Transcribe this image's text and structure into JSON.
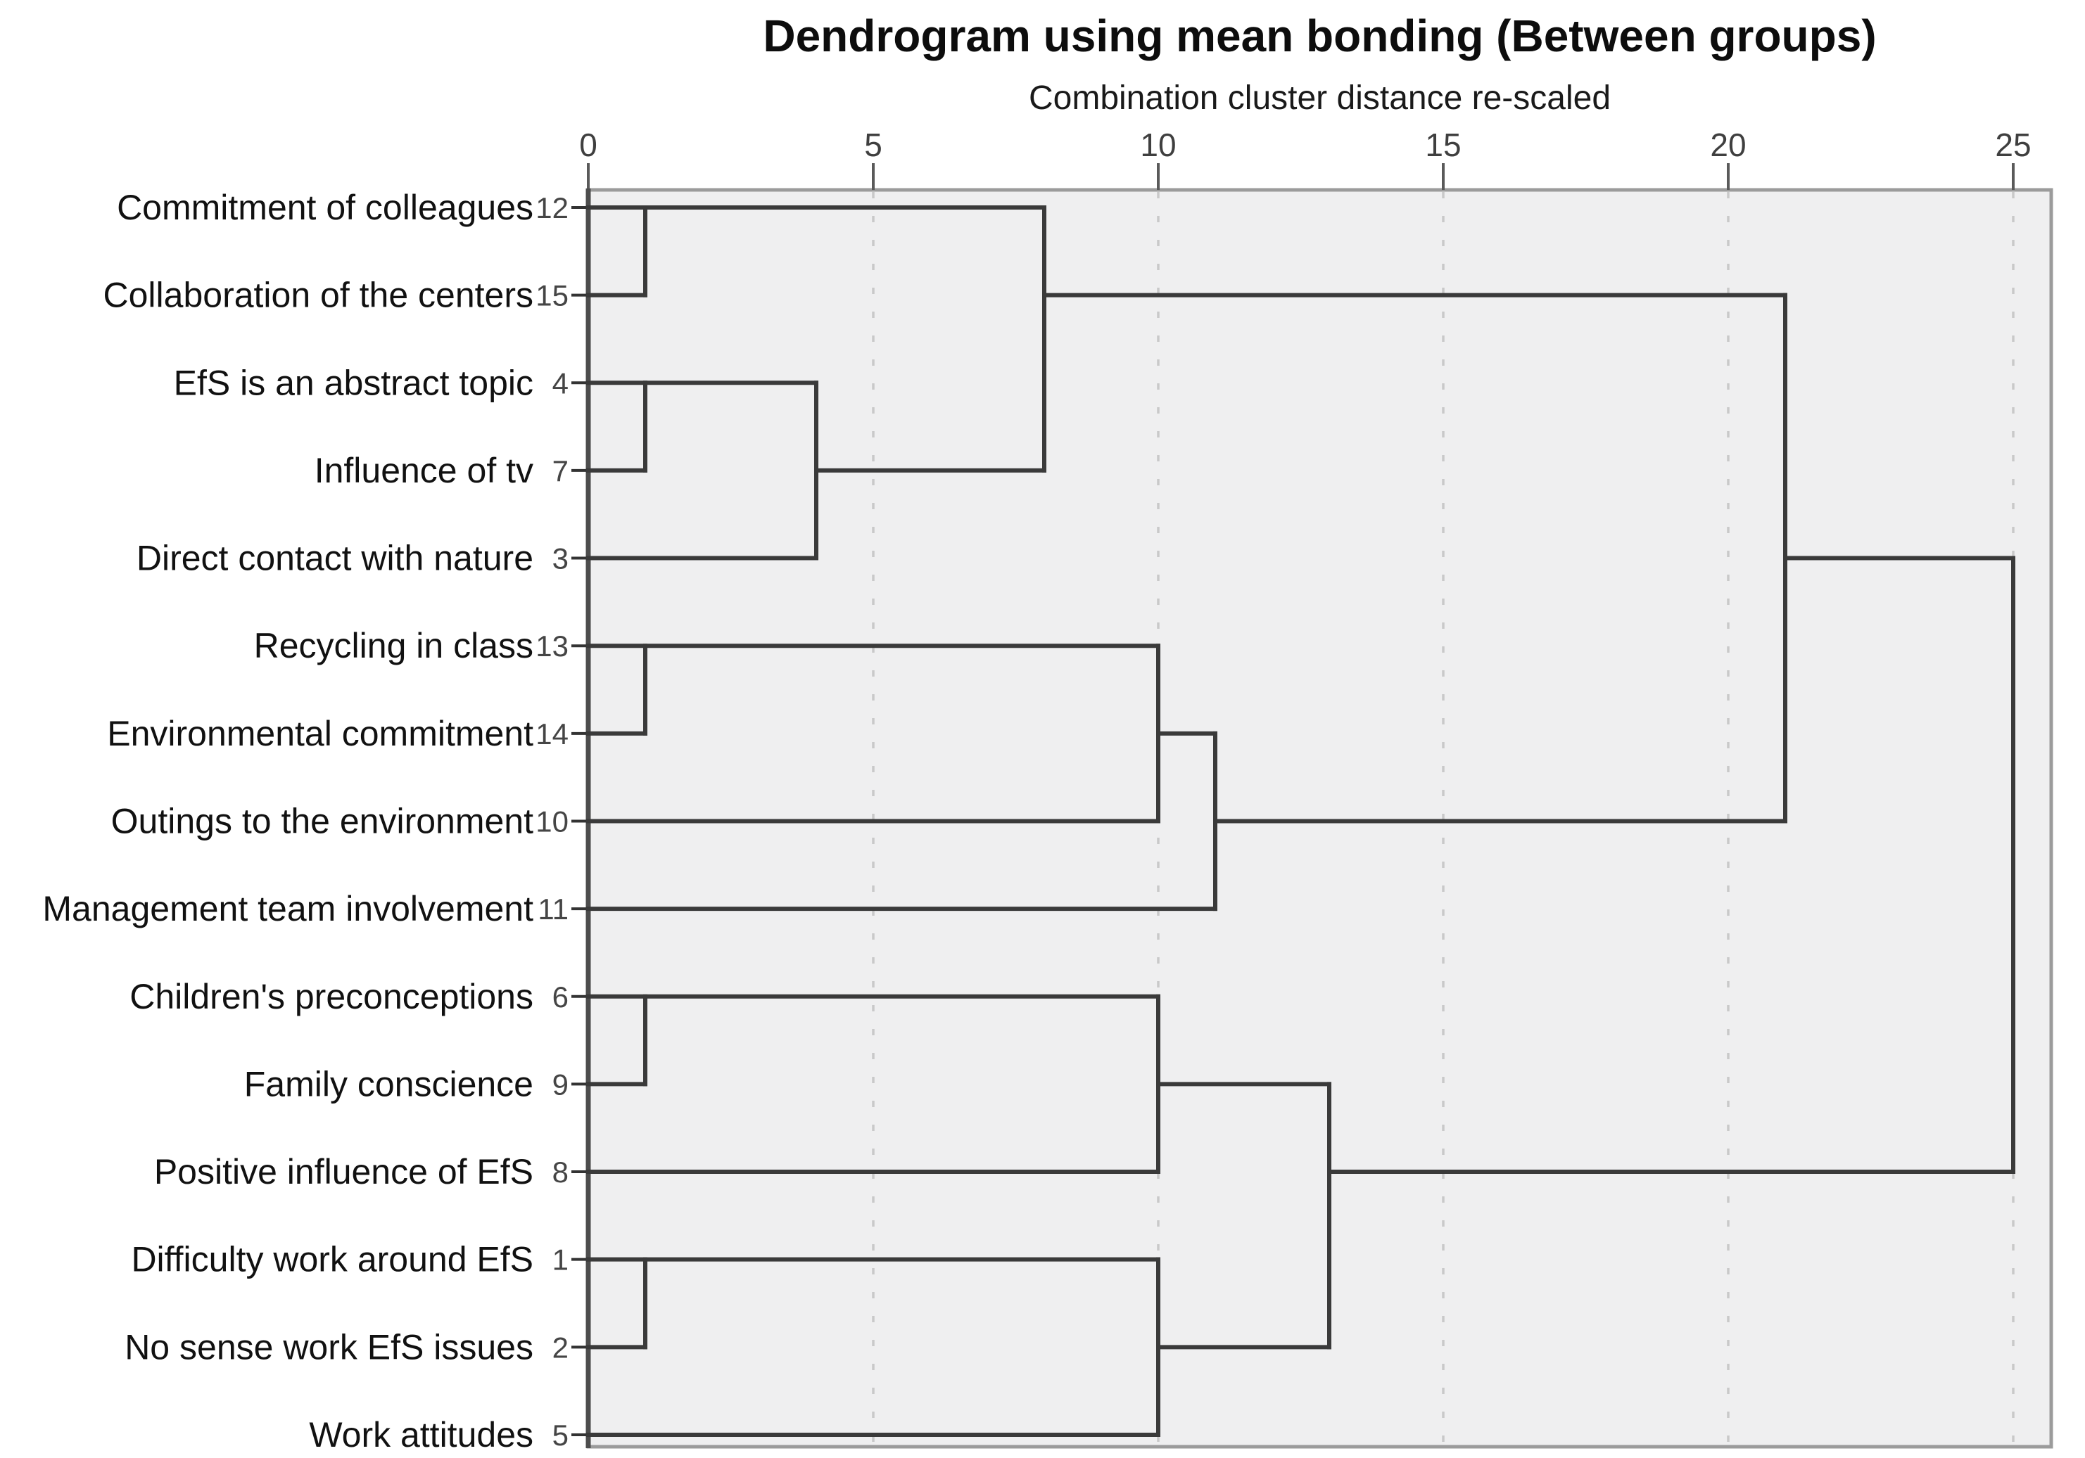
{
  "figure": {
    "title": "Dendrogram using mean bonding (Between groups)",
    "subtitle": "Combination cluster distance re-scaled"
  },
  "chart_data": {
    "type": "dendrogram",
    "title": "Dendrogram using mean bonding (Between groups)",
    "subtitle": "Combination cluster distance re-scaled",
    "axis": {
      "orientation": "top",
      "min": 0,
      "max": 25,
      "ticks": [
        0,
        5,
        10,
        15,
        20,
        25
      ],
      "gridlines": "dashed-vertical",
      "legend": "none"
    },
    "leaves": [
      {
        "label": "Commitment of colleagues",
        "case": "12"
      },
      {
        "label": "Collaboration of the centers",
        "case": "15"
      },
      {
        "label": "EfS is an abstract topic",
        "case": "4"
      },
      {
        "label": "Influence of tv",
        "case": "7"
      },
      {
        "label": "Direct contact with nature",
        "case": "3"
      },
      {
        "label": "Recycling in class",
        "case": "13"
      },
      {
        "label": "Environmental commitment",
        "case": "14"
      },
      {
        "label": "Outings to the environment",
        "case": "10"
      },
      {
        "label": "Management team involvement",
        "case": "11"
      },
      {
        "label": "Children's preconceptions",
        "case": "6"
      },
      {
        "label": "Family conscience",
        "case": "9"
      },
      {
        "label": "Positive influence of EfS",
        "case": "8"
      },
      {
        "label": "Difficulty work around EfS",
        "case": "1"
      },
      {
        "label": "No sense work EfS issues",
        "case": "2"
      },
      {
        "label": "Work attitudes",
        "case": "5"
      }
    ],
    "merges": [
      {
        "items": [
          [
            12
          ],
          [
            15
          ]
        ],
        "distance": 1
      },
      {
        "items": [
          [
            4
          ],
          [
            7
          ]
        ],
        "distance": 1
      },
      {
        "items": [
          [
            4,
            7
          ],
          [
            3
          ]
        ],
        "distance": 4
      },
      {
        "items": [
          [
            12,
            15
          ],
          [
            4,
            7,
            3
          ]
        ],
        "distance": 8
      },
      {
        "items": [
          [
            13
          ],
          [
            14
          ]
        ],
        "distance": 1
      },
      {
        "items": [
          [
            13,
            14
          ],
          [
            10
          ]
        ],
        "distance": 10
      },
      {
        "items": [
          [
            13,
            14,
            10
          ],
          [
            11
          ]
        ],
        "distance": 11
      },
      {
        "items": [
          [
            6
          ],
          [
            9
          ]
        ],
        "distance": 1
      },
      {
        "items": [
          [
            6,
            9
          ],
          [
            8
          ]
        ],
        "distance": 10
      },
      {
        "items": [
          [
            1
          ],
          [
            2
          ]
        ],
        "distance": 1
      },
      {
        "items": [
          [
            1,
            2
          ],
          [
            5
          ]
        ],
        "distance": 10
      },
      {
        "items": [
          [
            6,
            9,
            8
          ],
          [
            1,
            2,
            5
          ]
        ],
        "distance": 13
      },
      {
        "items": [
          [
            12,
            15,
            4,
            7,
            3
          ],
          [
            13,
            14,
            10,
            11
          ]
        ],
        "distance": 21
      },
      {
        "items": [
          [
            12,
            15,
            4,
            7,
            3,
            13,
            14,
            10,
            11
          ],
          [
            6,
            9,
            8,
            1,
            2,
            5
          ]
        ],
        "distance": 25
      }
    ],
    "h_segments": [
      {
        "row": 0,
        "d1": 0,
        "d2": 8
      },
      {
        "row": 1,
        "d1": 0,
        "d2": 1
      },
      {
        "row": 1,
        "d1": 8,
        "d2": 21
      },
      {
        "row": 2,
        "d1": 0,
        "d2": 1
      },
      {
        "row": 2,
        "d1": 1,
        "d2": 4
      },
      {
        "row": 3,
        "d1": 0,
        "d2": 1
      },
      {
        "row": 3,
        "d1": 4,
        "d2": 8
      },
      {
        "row": 4,
        "d1": 0,
        "d2": 4
      },
      {
        "row": 4,
        "d1": 21,
        "d2": 25
      },
      {
        "row": 5,
        "d1": 0,
        "d2": 10
      },
      {
        "row": 6,
        "d1": 0,
        "d2": 1
      },
      {
        "row": 6,
        "d1": 10,
        "d2": 11
      },
      {
        "row": 7,
        "d1": 0,
        "d2": 10
      },
      {
        "row": 7,
        "d1": 11,
        "d2": 21
      },
      {
        "row": 8,
        "d1": 0,
        "d2": 11
      },
      {
        "row": 9,
        "d1": 0,
        "d2": 10
      },
      {
        "row": 10,
        "d1": 0,
        "d2": 1
      },
      {
        "row": 10,
        "d1": 10,
        "d2": 13
      },
      {
        "row": 11,
        "d1": 0,
        "d2": 10
      },
      {
        "row": 11,
        "d1": 13,
        "d2": 25
      },
      {
        "row": 12,
        "d1": 0,
        "d2": 10
      },
      {
        "row": 13,
        "d1": 0,
        "d2": 1
      },
      {
        "row": 13,
        "d1": 10,
        "d2": 13
      },
      {
        "row": 14,
        "d1": 0,
        "d2": 10
      }
    ],
    "v_segments": [
      {
        "d": 1,
        "row1": 0,
        "row2": 1
      },
      {
        "d": 8,
        "row1": 0,
        "row2": 3
      },
      {
        "d": 1,
        "row1": 2,
        "row2": 3
      },
      {
        "d": 4,
        "row1": 2,
        "row2": 4
      },
      {
        "d": 21,
        "row1": 1,
        "row2": 7
      },
      {
        "d": 1,
        "row1": 5,
        "row2": 6
      },
      {
        "d": 10,
        "row1": 5,
        "row2": 7
      },
      {
        "d": 11,
        "row1": 6,
        "row2": 8
      },
      {
        "d": 25,
        "row1": 4,
        "row2": 11
      },
      {
        "d": 1,
        "row1": 9,
        "row2": 10
      },
      {
        "d": 10,
        "row1": 9,
        "row2": 11
      },
      {
        "d": 13,
        "row1": 10,
        "row2": 13
      },
      {
        "d": 1,
        "row1": 12,
        "row2": 13
      },
      {
        "d": 10,
        "row1": 12,
        "row2": 14
      }
    ],
    "colors": {
      "line": "#3a3a3a",
      "grid": "#c9c9c9",
      "plot_bg": "#efeff0",
      "border": "#9b9b9b",
      "axis": "#4d4d4d",
      "text": "#111111",
      "muted_text": "#454545"
    }
  }
}
